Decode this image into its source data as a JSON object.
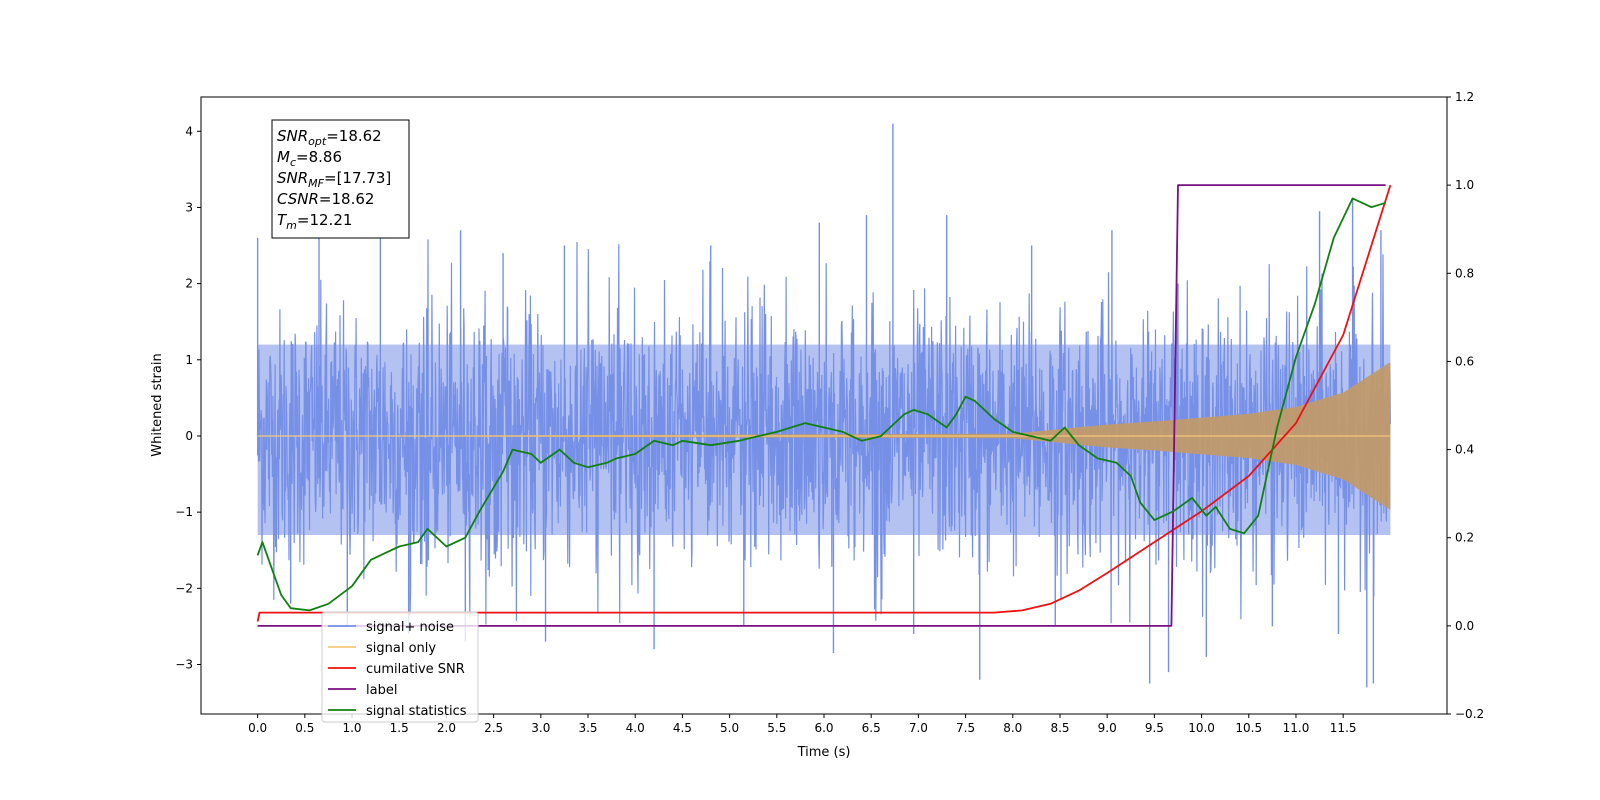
{
  "chart_data": {
    "type": "line",
    "title": "",
    "xlabel": "Time (s)",
    "ylabel": "Whitened strain",
    "y2label": "",
    "xlim": [
      -0.6,
      12.6
    ],
    "ylim": [
      -3.65,
      4.45
    ],
    "y2lim": [
      -0.2,
      1.2
    ],
    "xticks": [
      0.0,
      0.5,
      1.0,
      1.5,
      2.0,
      2.5,
      3.0,
      3.5,
      4.0,
      4.5,
      5.0,
      5.5,
      6.0,
      6.5,
      7.0,
      7.5,
      8.0,
      8.5,
      9.0,
      9.5,
      10.0,
      10.5,
      11.0,
      11.5
    ],
    "xtick_labels": [
      "0.0",
      "0.5",
      "1.0",
      "1.5",
      "2.0",
      "2.5",
      "3.0",
      "3.5",
      "4.0",
      "4.5",
      "5.0",
      "5.5",
      "6.0",
      "6.5",
      "7.0",
      "7.5",
      "8.0",
      "8.5",
      "9.0",
      "9.5",
      "10.0",
      "10.5",
      "11.0",
      "11.5"
    ],
    "yticks": [
      -3,
      -2,
      -1,
      0,
      1,
      2,
      3,
      4
    ],
    "ytick_labels": [
      "−3",
      "−2",
      "−1",
      "0",
      "1",
      "2",
      "3",
      "4"
    ],
    "y2ticks": [
      -0.2,
      0.0,
      0.2,
      0.4,
      0.6,
      0.8,
      1.0,
      1.2
    ],
    "y2tick_labels": [
      "−0.2",
      "0.0",
      "0.2",
      "0.4",
      "0.6",
      "0.8",
      "1.0",
      "1.2"
    ],
    "grid": false,
    "legend_position": "lower-left",
    "annotation": {
      "lines": [
        {
          "base": "SNR",
          "sub": "opt",
          "value": "=18.62"
        },
        {
          "base": "M",
          "sub": "c",
          "value": "=8.86"
        },
        {
          "base": "SNR",
          "sub": "MF",
          "value": "=[17.73]"
        },
        {
          "base": "CSNR",
          "sub": "",
          "value": "=18.62"
        },
        {
          "base": "T",
          "sub": "m",
          "value": "=12.21"
        }
      ]
    },
    "series": [
      {
        "name": "signal+ noise",
        "color": "#7690e8",
        "axis": "left",
        "style": "noise-band",
        "x_range": [
          0.0,
          12.0
        ],
        "core_band": [
          -1.3,
          1.2
        ],
        "typical_extent": [
          -2.5,
          2.6
        ],
        "spikes": [
          {
            "x": 0.0,
            "y": 2.6
          },
          {
            "x": 0.35,
            "y": -2.2
          },
          {
            "x": 0.65,
            "y": 2.6
          },
          {
            "x": 0.95,
            "y": -2.5
          },
          {
            "x": 1.3,
            "y": 2.6
          },
          {
            "x": 1.6,
            "y": -2.6
          },
          {
            "x": 2.15,
            "y": 2.7
          },
          {
            "x": 2.2,
            "y": -2.7
          },
          {
            "x": 2.6,
            "y": 2.4
          },
          {
            "x": 3.05,
            "y": -2.7
          },
          {
            "x": 3.25,
            "y": 2.5
          },
          {
            "x": 4.2,
            "y": -2.8
          },
          {
            "x": 4.8,
            "y": 2.5
          },
          {
            "x": 5.15,
            "y": -2.5
          },
          {
            "x": 5.95,
            "y": 2.8
          },
          {
            "x": 6.1,
            "y": -2.85
          },
          {
            "x": 6.45,
            "y": 2.9
          },
          {
            "x": 6.73,
            "y": 4.1
          },
          {
            "x": 6.95,
            "y": -2.6
          },
          {
            "x": 7.3,
            "y": 2.9
          },
          {
            "x": 7.65,
            "y": -3.2
          },
          {
            "x": 8.2,
            "y": 2.5
          },
          {
            "x": 8.45,
            "y": -2.5
          },
          {
            "x": 9.05,
            "y": 2.7
          },
          {
            "x": 9.45,
            "y": -3.25
          },
          {
            "x": 9.65,
            "y": -3.1
          },
          {
            "x": 9.75,
            "y": 2.0
          },
          {
            "x": 10.05,
            "y": -2.9
          },
          {
            "x": 10.75,
            "y": -2.5
          },
          {
            "x": 11.25,
            "y": 2.95
          },
          {
            "x": 11.45,
            "y": -2.6
          },
          {
            "x": 11.6,
            "y": 3.1
          },
          {
            "x": 11.75,
            "y": -3.3
          },
          {
            "x": 11.82,
            "y": -3.25
          },
          {
            "x": 11.9,
            "y": 2.7
          }
        ]
      },
      {
        "name": "signal only",
        "color": "#f5c87a",
        "axis": "left",
        "style": "chirp",
        "x_range": [
          0.0,
          12.0
        ],
        "amplitude_points": [
          [
            0.0,
            0.0
          ],
          [
            8.0,
            0.03
          ],
          [
            8.5,
            0.09
          ],
          [
            9.0,
            0.15
          ],
          [
            9.5,
            0.19
          ],
          [
            10.0,
            0.24
          ],
          [
            10.5,
            0.29
          ],
          [
            11.0,
            0.38
          ],
          [
            11.5,
            0.57
          ],
          [
            12.0,
            0.97
          ]
        ]
      },
      {
        "name": "cumilative SNR",
        "color": "#ee1111",
        "axis": "right",
        "points": [
          [
            0.0,
            0.01
          ],
          [
            0.02,
            0.03
          ],
          [
            7.8,
            0.03
          ],
          [
            8.1,
            0.035
          ],
          [
            8.4,
            0.05
          ],
          [
            8.7,
            0.08
          ],
          [
            9.0,
            0.12
          ],
          [
            9.5,
            0.19
          ],
          [
            10.0,
            0.26
          ],
          [
            10.5,
            0.34
          ],
          [
            11.0,
            0.46
          ],
          [
            11.5,
            0.66
          ],
          [
            12.0,
            1.0
          ]
        ]
      },
      {
        "name": "label",
        "color": "#7a0e85",
        "axis": "right",
        "points": [
          [
            0.0,
            0.0
          ],
          [
            9.68,
            0.0
          ],
          [
            9.75,
            1.0
          ],
          [
            11.95,
            1.0
          ]
        ]
      },
      {
        "name": "signal statistics",
        "color": "#118011",
        "axis": "right",
        "points": [
          [
            0.0,
            0.16
          ],
          [
            0.05,
            0.19
          ],
          [
            0.15,
            0.13
          ],
          [
            0.25,
            0.07
          ],
          [
            0.35,
            0.04
          ],
          [
            0.55,
            0.035
          ],
          [
            0.75,
            0.05
          ],
          [
            1.0,
            0.09
          ],
          [
            1.2,
            0.15
          ],
          [
            1.5,
            0.18
          ],
          [
            1.7,
            0.19
          ],
          [
            1.8,
            0.22
          ],
          [
            2.0,
            0.18
          ],
          [
            2.2,
            0.2
          ],
          [
            2.35,
            0.26
          ],
          [
            2.6,
            0.35
          ],
          [
            2.7,
            0.4
          ],
          [
            2.9,
            0.39
          ],
          [
            3.0,
            0.37
          ],
          [
            3.2,
            0.4
          ],
          [
            3.35,
            0.37
          ],
          [
            3.5,
            0.36
          ],
          [
            3.7,
            0.37
          ],
          [
            3.8,
            0.38
          ],
          [
            4.0,
            0.39
          ],
          [
            4.2,
            0.42
          ],
          [
            4.4,
            0.41
          ],
          [
            4.5,
            0.42
          ],
          [
            4.8,
            0.41
          ],
          [
            5.1,
            0.42
          ],
          [
            5.3,
            0.43
          ],
          [
            5.5,
            0.44
          ],
          [
            5.8,
            0.46
          ],
          [
            6.0,
            0.45
          ],
          [
            6.2,
            0.44
          ],
          [
            6.4,
            0.42
          ],
          [
            6.6,
            0.43
          ],
          [
            6.75,
            0.46
          ],
          [
            6.85,
            0.48
          ],
          [
            6.95,
            0.49
          ],
          [
            7.1,
            0.48
          ],
          [
            7.3,
            0.45
          ],
          [
            7.4,
            0.48
          ],
          [
            7.5,
            0.52
          ],
          [
            7.6,
            0.51
          ],
          [
            7.8,
            0.47
          ],
          [
            8.0,
            0.44
          ],
          [
            8.2,
            0.43
          ],
          [
            8.4,
            0.42
          ],
          [
            8.55,
            0.45
          ],
          [
            8.7,
            0.41
          ],
          [
            8.9,
            0.38
          ],
          [
            9.1,
            0.37
          ],
          [
            9.25,
            0.34
          ],
          [
            9.35,
            0.28
          ],
          [
            9.5,
            0.24
          ],
          [
            9.7,
            0.26
          ],
          [
            9.9,
            0.29
          ],
          [
            10.05,
            0.25
          ],
          [
            10.15,
            0.27
          ],
          [
            10.3,
            0.22
          ],
          [
            10.45,
            0.21
          ],
          [
            10.6,
            0.25
          ],
          [
            10.8,
            0.45
          ],
          [
            11.0,
            0.61
          ],
          [
            11.2,
            0.73
          ],
          [
            11.4,
            0.88
          ],
          [
            11.6,
            0.97
          ],
          [
            11.8,
            0.95
          ],
          [
            11.95,
            0.96
          ]
        ]
      }
    ]
  }
}
